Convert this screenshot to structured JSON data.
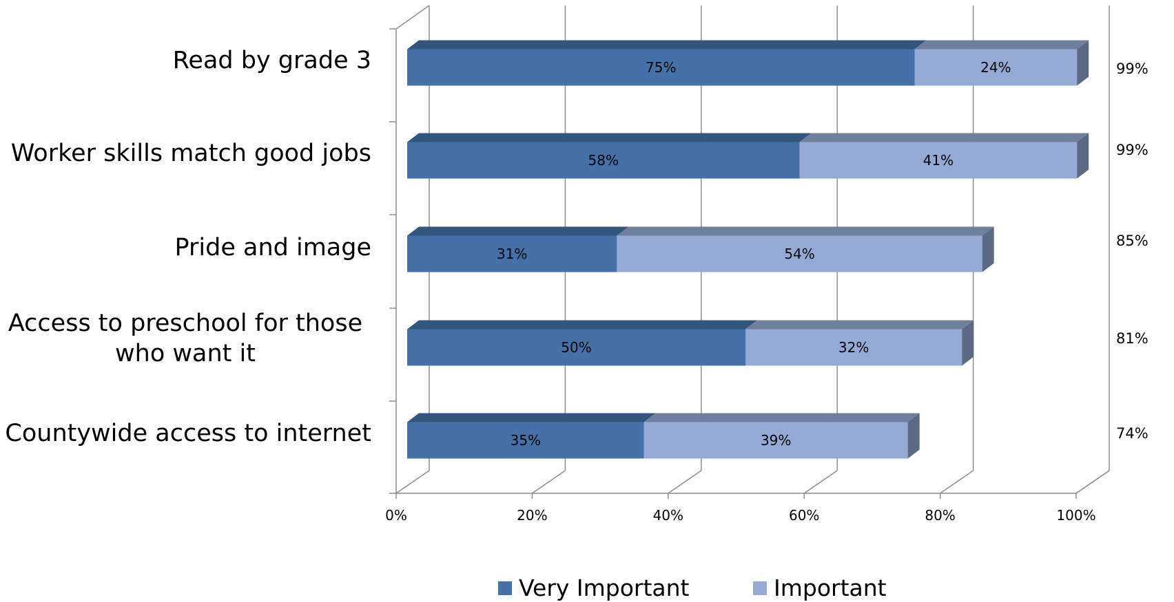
{
  "chart_data": {
    "type": "bar",
    "orientation": "horizontal",
    "stacked": true,
    "categories": [
      "Read by grade 3",
      "Worker skills match good jobs",
      "Pride and image",
      "Access to preschool for those who want it",
      "Countywide access to internet"
    ],
    "series": [
      {
        "name": "Very Important",
        "values": [
          75,
          58,
          31,
          50,
          35
        ],
        "labels": [
          "75%",
          "58%",
          "31%",
          "50%",
          "35%"
        ],
        "color": "#4472a8"
      },
      {
        "name": "Important",
        "values": [
          24,
          41,
          54,
          32,
          39
        ],
        "labels": [
          "24%",
          "41%",
          "54%",
          "32%",
          "39%"
        ],
        "color": "#94aad4"
      }
    ],
    "totals": [
      "99%",
      "99%",
      "85%",
      "81%",
      "74%"
    ],
    "x_ticks": [
      "0%",
      "20%",
      "40%",
      "60%",
      "80%",
      "100%"
    ],
    "xlim": [
      0,
      100
    ],
    "grid": true,
    "legend_position": "bottom"
  }
}
